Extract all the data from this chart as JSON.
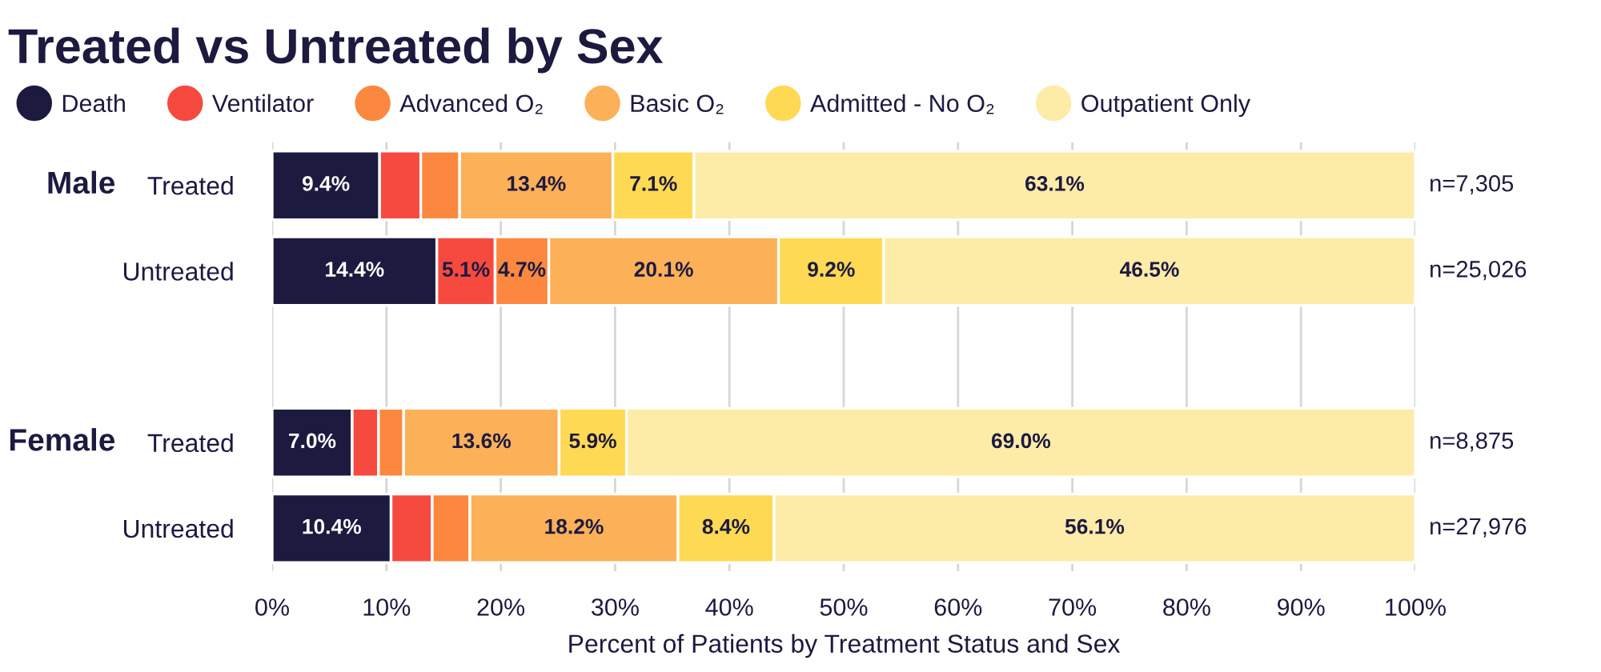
{
  "chart_data": {
    "type": "bar",
    "orientation": "horizontal",
    "stacked": true,
    "title": "Treated vs Untreated by Sex",
    "xlabel": "Percent of Patients by Treatment Status and Sex",
    "categories": [
      "Treated",
      "Untreated",
      null,
      "Treated",
      "Untreated"
    ],
    "series": [
      {
        "name": "Death",
        "color": "#1d1a40",
        "values": [
          9.4,
          14.4,
          null,
          7.0,
          10.4
        ],
        "value_labels": [
          "9.4%",
          "14.4%",
          null,
          "7.0%",
          "10.4%"
        ]
      },
      {
        "name": "Ventilator",
        "color": "#f74a3f",
        "values": [
          3.6,
          5.1,
          null,
          2.3,
          3.6
        ],
        "value_labels": [
          null,
          "5.1%",
          null,
          null,
          null
        ]
      },
      {
        "name": "Advanced O₂",
        "color": "#fb883e",
        "values": [
          3.4,
          4.7,
          null,
          2.2,
          3.3
        ],
        "value_labels": [
          null,
          "4.7%",
          null,
          null,
          null
        ]
      },
      {
        "name": "Basic O₂",
        "color": "#fcb058",
        "values": [
          13.4,
          20.1,
          null,
          13.6,
          18.2
        ],
        "value_labels": [
          "13.4%",
          "20.1%",
          null,
          "13.6%",
          "18.2%"
        ]
      },
      {
        "name": "Admitted - No O₂",
        "color": "#fed953",
        "values": [
          7.1,
          9.2,
          null,
          5.9,
          8.4
        ],
        "value_labels": [
          "7.1%",
          "9.2%",
          null,
          "5.9%",
          "8.4%"
        ]
      },
      {
        "name": "Outpatient Only",
        "color": "#fdeba8",
        "values": [
          63.1,
          46.5,
          null,
          69.0,
          56.1
        ],
        "value_labels": [
          "63.1%",
          "46.5%",
          null,
          "69.0%",
          "56.1%"
        ]
      }
    ],
    "xlim": [
      0,
      100
    ],
    "xticks": [
      {
        "value": 0,
        "label": "0%"
      },
      {
        "value": 10,
        "label": "10%"
      },
      {
        "value": 20,
        "label": "20%"
      },
      {
        "value": 30,
        "label": "30%"
      },
      {
        "value": 40,
        "label": "40%"
      },
      {
        "value": 50,
        "label": "50%"
      },
      {
        "value": 60,
        "label": "60%"
      },
      {
        "value": 70,
        "label": "70%"
      },
      {
        "value": 80,
        "label": "80%"
      },
      {
        "value": 90,
        "label": "90%"
      },
      {
        "value": 100,
        "label": "100%"
      }
    ],
    "grid": "x",
    "legend": "top left",
    "annotations": [
      "Male",
      "Female",
      "n=7,305",
      "n=25,026",
      "n=8,875",
      "n=27,976"
    ]
  }
}
